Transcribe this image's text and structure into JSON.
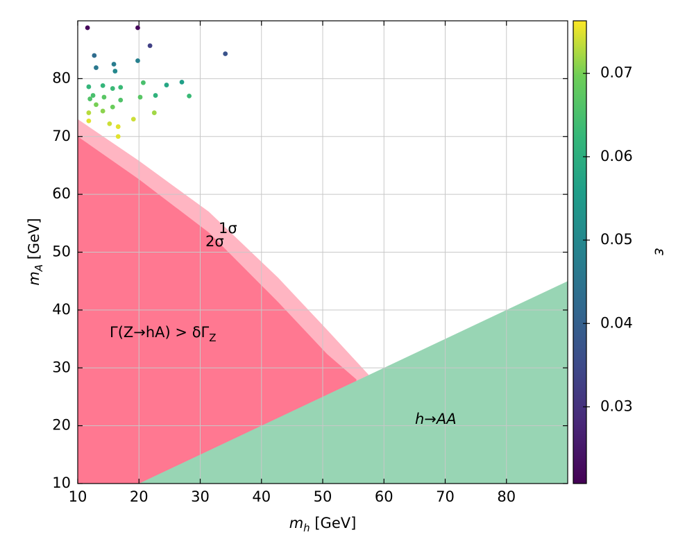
{
  "chart_data": {
    "type": "scatter",
    "x_label": {
      "text": "m",
      "sub": "h",
      "suffix": " [GeV]"
    },
    "y_label": {
      "text": "m",
      "sub": "A",
      "suffix": " [GeV]"
    },
    "colorbar_label": "ε",
    "colormap": "viridis",
    "xlim": [
      10,
      90
    ],
    "ylim": [
      10,
      90
    ],
    "xticks": [
      10,
      20,
      30,
      40,
      50,
      60,
      70,
      80
    ],
    "yticks": [
      10,
      20,
      30,
      40,
      50,
      60,
      70,
      80
    ],
    "clim": [
      0.0208,
      0.0763
    ],
    "cticks": [
      0.03,
      0.04,
      0.05,
      0.06,
      0.07
    ],
    "grid": true,
    "regions": [
      {
        "color": "#ffb5c2",
        "x": [
          10,
          20,
          31.4,
          42.7,
          50.7,
          57.5,
          57.5,
          10
        ],
        "y": [
          73,
          65.8,
          57,
          45.6,
          36.6,
          28.8,
          10,
          10
        ]
      },
      {
        "color": "#ff7891",
        "x": [
          10,
          20,
          31.4,
          42.7,
          50.7,
          55.5,
          55.5,
          10
        ],
        "y": [
          70,
          62.6,
          53.4,
          41.4,
          32.4,
          28,
          10,
          10
        ]
      },
      {
        "color": "#98d5b4",
        "x": [
          20,
          90,
          90
        ],
        "y": [
          10,
          45,
          10
        ]
      }
    ],
    "annotations": [
      {
        "text": "Γ(Z→hA) > δΓ",
        "sub": "Z"
      },
      {
        "text": "h→AA"
      },
      {
        "text": "1σ"
      },
      {
        "text": "2σ"
      }
    ],
    "x": [
      11.6,
      19.8,
      21.8,
      12.7,
      34.1,
      15.9,
      13.0,
      16.1,
      19.8,
      27.0,
      11.8,
      14.1,
      15.7,
      17.0,
      20.7,
      24.5,
      12.5,
      22.7,
      28.2,
      12.0,
      14.3,
      20.2,
      17.0,
      13.0,
      15.7,
      11.8,
      14.1,
      22.5,
      11.8,
      19.1,
      15.2,
      16.6,
      16.6
    ],
    "y": [
      88.8,
      88.8,
      85.7,
      84.0,
      84.3,
      82.5,
      81.9,
      81.3,
      83.1,
      79.4,
      78.6,
      78.8,
      78.3,
      78.5,
      79.3,
      78.9,
      77.1,
      77.1,
      77.0,
      76.5,
      76.8,
      76.8,
      76.3,
      75.5,
      75.1,
      74.1,
      74.4,
      74.1,
      72.7,
      73.0,
      72.2,
      71.7,
      70.0
    ],
    "c": [
      0.022,
      0.022,
      0.033,
      0.043,
      0.037,
      0.047,
      0.046,
      0.05,
      0.048,
      0.056,
      0.062,
      0.062,
      0.063,
      0.063,
      0.065,
      0.058,
      0.065,
      0.061,
      0.063,
      0.066,
      0.067,
      0.067,
      0.066,
      0.07,
      0.069,
      0.073,
      0.071,
      0.072,
      0.075,
      0.074,
      0.074,
      0.075,
      0.075
    ]
  }
}
